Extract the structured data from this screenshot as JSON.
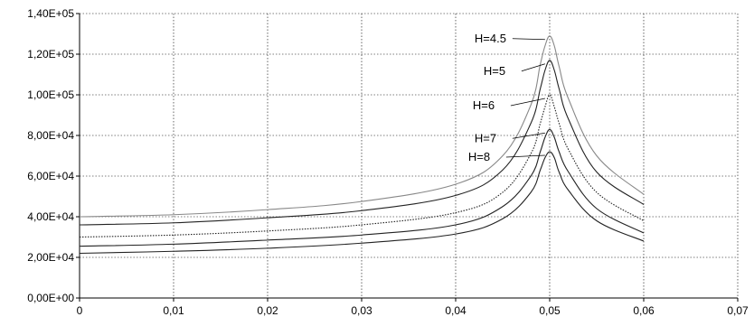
{
  "chart_data": {
    "type": "line",
    "title": "",
    "xlabel": "",
    "ylabel": "",
    "xlim": [
      0,
      0.07
    ],
    "ylim": [
      0,
      140000
    ],
    "x_ticks": [
      0,
      0.01,
      0.02,
      0.03,
      0.04,
      0.05,
      0.06,
      0.07
    ],
    "x_tick_labels": [
      "0",
      "0,01",
      "0,02",
      "0,03",
      "0,04",
      "0,05",
      "0,06",
      "0,07"
    ],
    "y_ticks": [
      0,
      20000,
      40000,
      60000,
      80000,
      100000,
      120000,
      140000
    ],
    "y_tick_labels": [
      "0,00E+00",
      "2,00E+04",
      "4,00E+04",
      "6,00E+04",
      "8,00E+04",
      "1,00E+05",
      "1,20E+05",
      "1,40E+05"
    ],
    "grid": true,
    "legend": "none",
    "x": [
      0,
      0.01,
      0.02,
      0.03,
      0.04,
      0.045,
      0.048,
      0.049,
      0.0495,
      0.05,
      0.0505,
      0.051,
      0.052,
      0.055,
      0.06
    ],
    "series": [
      {
        "name": "H=4.5",
        "color": "#888888",
        "dash": "solid",
        "values": [
          40000,
          41000,
          43500,
          47500,
          56000,
          70000,
          95000,
          115000,
          124000,
          129000,
          124000,
          114000,
          98000,
          70000,
          51000
        ]
      },
      {
        "name": "H=5",
        "color": "#222222",
        "dash": "solid",
        "values": [
          36000,
          37000,
          39500,
          43000,
          50500,
          63000,
          86000,
          103000,
          112000,
          117000,
          112000,
          103000,
          88000,
          62000,
          46000
        ]
      },
      {
        "name": "H=6",
        "color": "#222222",
        "dash": "dotted",
        "values": [
          30000,
          31000,
          33000,
          36000,
          42000,
          52000,
          71000,
          86000,
          94000,
          100000,
          94000,
          86000,
          73000,
          52000,
          38000
        ]
      },
      {
        "name": "H=7",
        "color": "#222222",
        "dash": "solid",
        "values": [
          25500,
          26500,
          28500,
          31000,
          36000,
          45000,
          60000,
          72000,
          79000,
          83000,
          79000,
          72000,
          62000,
          44000,
          32000
        ]
      },
      {
        "name": "H=8",
        "color": "#222222",
        "dash": "solid",
        "values": [
          22000,
          23000,
          24500,
          27000,
          31500,
          39000,
          52000,
          63000,
          69000,
          72000,
          69000,
          62000,
          53000,
          38000,
          28000
        ]
      }
    ],
    "annotations": [
      {
        "text": "H=4.5",
        "series": 0,
        "anchor_x": 0.0497
      },
      {
        "text": "H=5",
        "series": 1,
        "anchor_x": 0.0497
      },
      {
        "text": "H=6",
        "series": 2,
        "anchor_x": 0.0497
      },
      {
        "text": "H=7",
        "series": 3,
        "anchor_x": 0.0497
      },
      {
        "text": "H=8",
        "series": 4,
        "anchor_x": 0.0497
      }
    ]
  }
}
